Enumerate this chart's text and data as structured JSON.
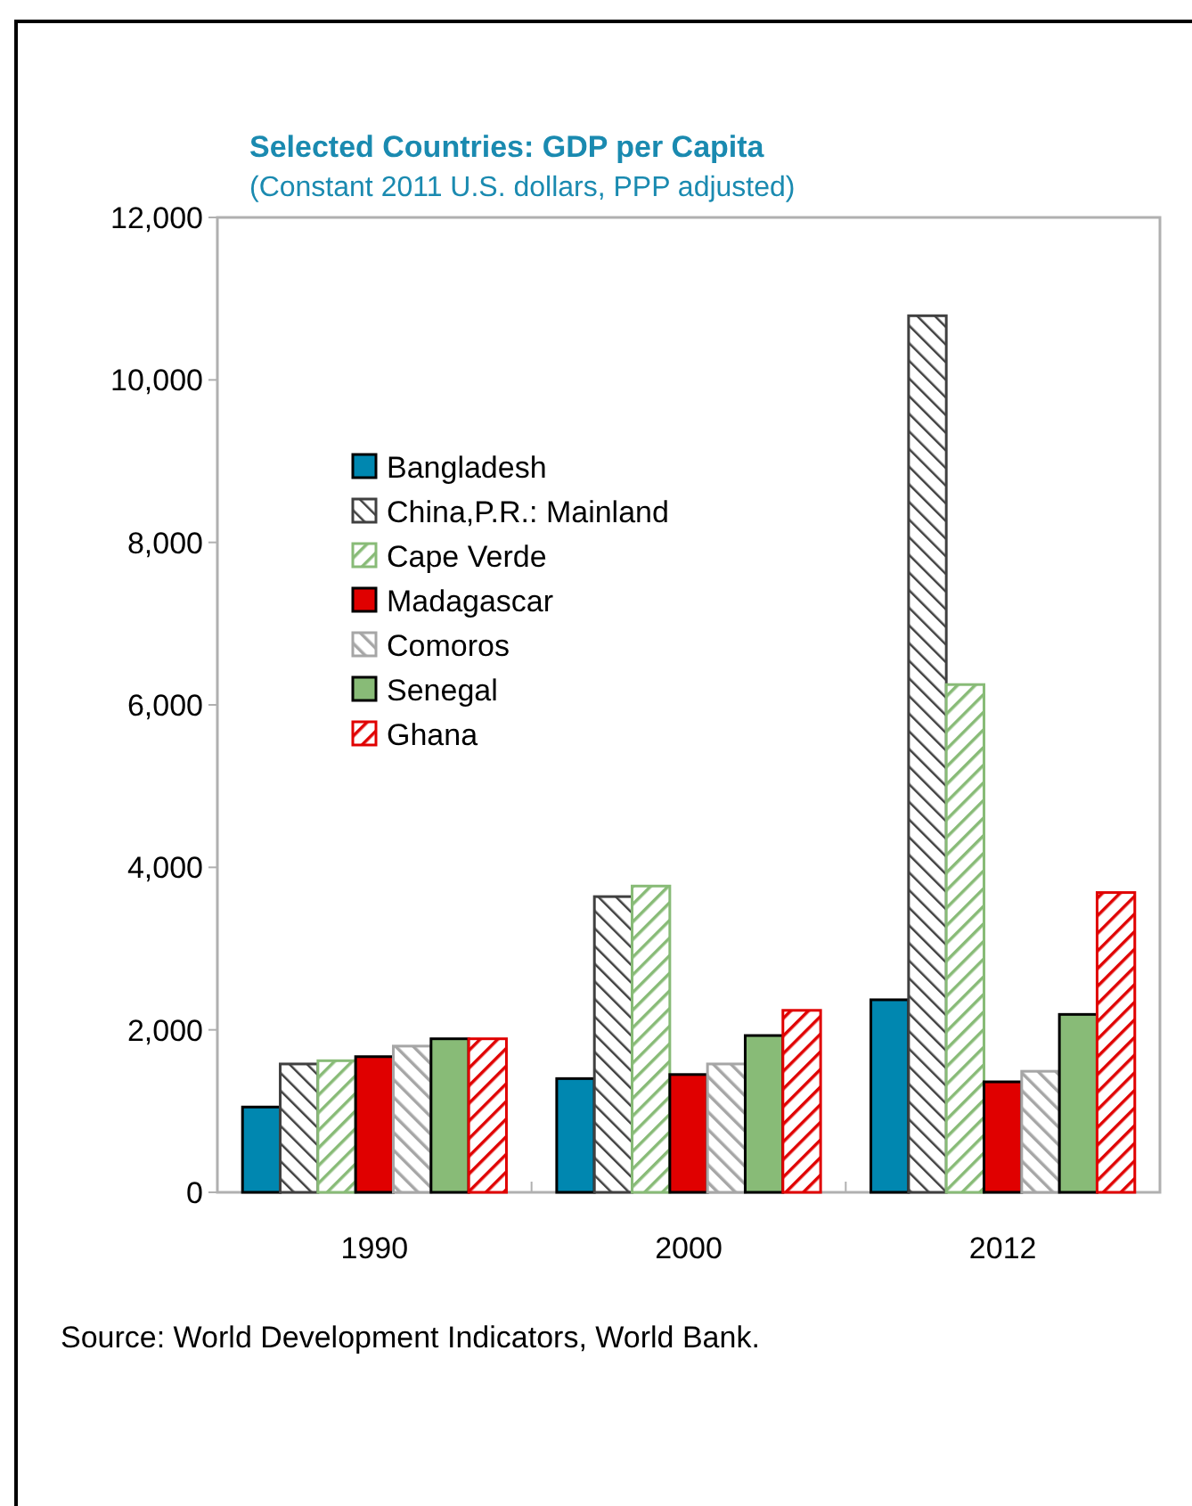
{
  "chart_data": {
    "type": "bar",
    "title": "Selected Countries: GDP per Capita",
    "subtitle": "(Constant 2011 U.S. dollars, PPP adjusted)",
    "categories": [
      "1990",
      "2000",
      "2012"
    ],
    "series": [
      {
        "name": "Bangladesh",
        "color": "#0087b0",
        "values": [
          1050,
          1400,
          2370
        ]
      },
      {
        "name": "China,P.R.: Mainland",
        "color": "#404040",
        "values": [
          1580,
          3640,
          10790
        ]
      },
      {
        "name": "Cape Verde",
        "color": "#88bb77",
        "values": [
          1620,
          3770,
          6250
        ]
      },
      {
        "name": "Madagascar",
        "color": "#e00000",
        "values": [
          1670,
          1450,
          1360
        ]
      },
      {
        "name": "Comoros",
        "color": "#a6a6a6",
        "values": [
          1800,
          1580,
          1490
        ]
      },
      {
        "name": "Senegal",
        "color": "#88bb77",
        "values": [
          1890,
          1930,
          2190
        ]
      },
      {
        "name": "Ghana",
        "color": "#e00000",
        "values": [
          1890,
          2240,
          3690
        ]
      }
    ],
    "ylim": [
      0,
      12000
    ],
    "yticks": [
      {
        "value": 0,
        "label": "0"
      },
      {
        "value": 2000,
        "label": "2,000"
      },
      {
        "value": 4000,
        "label": "4,000"
      },
      {
        "value": 6000,
        "label": "6,000"
      },
      {
        "value": 8000,
        "label": "8,000"
      },
      {
        "value": 10000,
        "label": "10,000"
      },
      {
        "value": 12000,
        "label": "12,000"
      }
    ],
    "grid": false,
    "legend": "left",
    "annotations": [
      "Source: World Development Indicators, World Bank."
    ]
  }
}
